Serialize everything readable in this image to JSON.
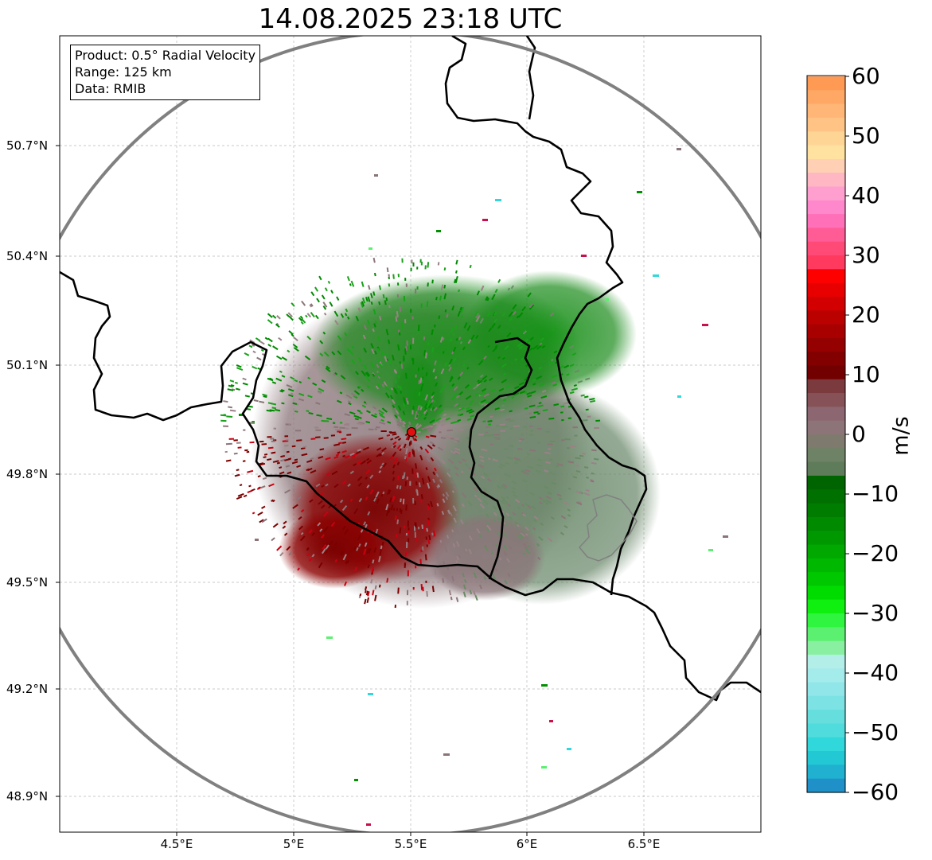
{
  "title": "14.08.2025 23:18 UTC",
  "info_box": {
    "product": "Product: 0.5° Radial Velocity",
    "range": "Range: 125 km",
    "data": "Data: RMIB"
  },
  "axes": {
    "y_ticks": [
      "50.7°N",
      "50.4°N",
      "50.1°N",
      "49.8°N",
      "49.5°N",
      "49.2°N",
      "48.9°N"
    ],
    "x_ticks": [
      "4.5°E",
      "5°E",
      "5.5°E",
      "6°E",
      "6.5°E"
    ]
  },
  "colorbar": {
    "label": "m/s",
    "ticks": [
      "60",
      "50",
      "40",
      "30",
      "20",
      "10",
      "0",
      "−10",
      "−20",
      "−30",
      "−40",
      "−50",
      "−60"
    ],
    "range": [
      -60,
      60
    ]
  },
  "colors": {
    "ring": "#808080",
    "radar_site": "#e01010",
    "outbound_red": "#8b0000",
    "inbound_green": "#0a8a0a",
    "near_zero": "#8a7478"
  },
  "radar_site": {
    "lon": 5.505,
    "lat": 49.914
  }
}
